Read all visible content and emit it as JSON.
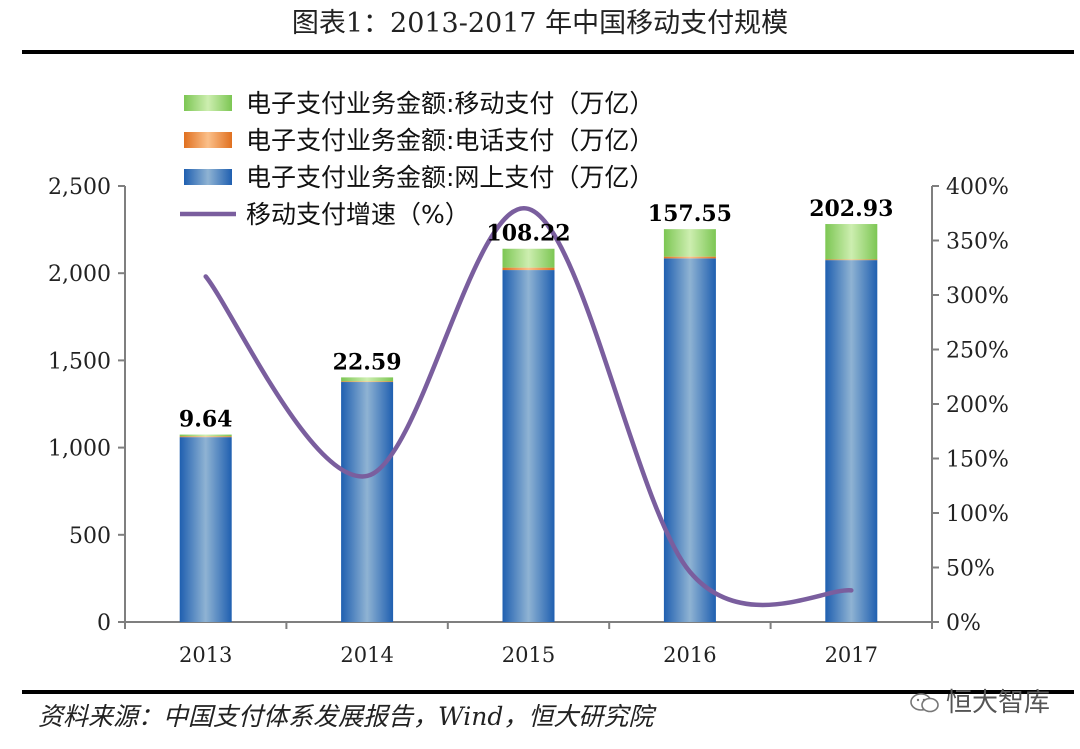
{
  "page": {
    "title": "图表1：2013-2017 年中国移动支付规模",
    "source": "资料来源：中国支付体系发展报告，Wind，恒大研究院",
    "watermark": "恒大智库",
    "watermark_icon": "wechat-icon"
  },
  "chart_data": {
    "type": "bar",
    "title": "图表1：2013-2017 年中国移动支付规模",
    "categories": [
      "2013",
      "2014",
      "2015",
      "2016",
      "2017"
    ],
    "stacked": true,
    "series": [
      {
        "name": "电子支付业务金额:网上支付（万亿）",
        "axis": "left",
        "color": "#2f78c4",
        "values": [
          1060,
          1376,
          2018,
          2085,
          2075
        ]
      },
      {
        "name": "电子支付业务金额:电话支付（万亿）",
        "axis": "left",
        "color": "#f08a3c",
        "values": [
          5,
          4,
          14,
          10,
          4
        ]
      },
      {
        "name": "电子支付业务金额:移动支付（万亿）",
        "axis": "left",
        "color": "#8fd06a",
        "values": [
          9.64,
          22.59,
          108.22,
          157.55,
          202.93
        ],
        "labels": [
          "9.64",
          "22.59",
          "108.22",
          "157.55",
          "202.93"
        ]
      },
      {
        "name": "移动支付增速（%）",
        "axis": "right",
        "type": "line",
        "color": "#7a5e9e",
        "values": [
          317,
          134,
          379,
          46,
          29
        ]
      }
    ],
    "y_left": {
      "min": 0,
      "max": 2500,
      "ticks": [
        "0",
        "500",
        "1,000",
        "1,500",
        "2,000",
        "2,500"
      ]
    },
    "y_right": {
      "min": 0,
      "max": 400,
      "ticks": [
        "0%",
        "50%",
        "100%",
        "150%",
        "200%",
        "250%",
        "300%",
        "350%",
        "400%"
      ]
    },
    "legend_order": [
      2,
      1,
      0,
      3
    ],
    "legend_position": "top-left",
    "grid": false
  }
}
